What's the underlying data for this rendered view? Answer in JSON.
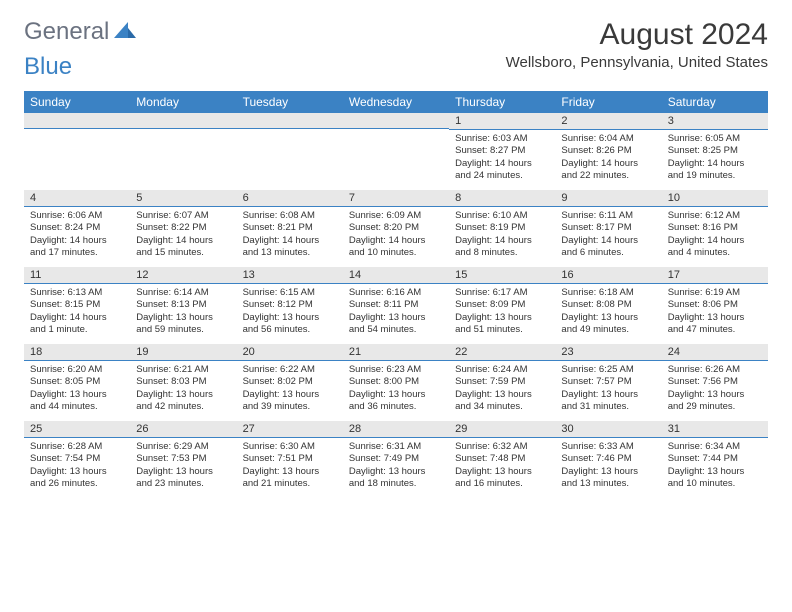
{
  "logo": {
    "text1": "General",
    "text2": "Blue"
  },
  "title": "August 2024",
  "location": "Wellsboro, Pennsylvania, United States",
  "colors": {
    "header_bg": "#3b82c4",
    "header_text": "#ffffff",
    "daynum_bg": "#e8e8e8",
    "daynum_border": "#3b82c4",
    "text": "#333333",
    "logo_gray": "#6b7280",
    "logo_blue": "#3b82c4"
  },
  "day_headers": [
    "Sunday",
    "Monday",
    "Tuesday",
    "Wednesday",
    "Thursday",
    "Friday",
    "Saturday"
  ],
  "weeks": [
    [
      {
        "num": "",
        "sunrise": "",
        "sunset": "",
        "daylight": ""
      },
      {
        "num": "",
        "sunrise": "",
        "sunset": "",
        "daylight": ""
      },
      {
        "num": "",
        "sunrise": "",
        "sunset": "",
        "daylight": ""
      },
      {
        "num": "",
        "sunrise": "",
        "sunset": "",
        "daylight": ""
      },
      {
        "num": "1",
        "sunrise": "Sunrise: 6:03 AM",
        "sunset": "Sunset: 8:27 PM",
        "daylight": "Daylight: 14 hours and 24 minutes."
      },
      {
        "num": "2",
        "sunrise": "Sunrise: 6:04 AM",
        "sunset": "Sunset: 8:26 PM",
        "daylight": "Daylight: 14 hours and 22 minutes."
      },
      {
        "num": "3",
        "sunrise": "Sunrise: 6:05 AM",
        "sunset": "Sunset: 8:25 PM",
        "daylight": "Daylight: 14 hours and 19 minutes."
      }
    ],
    [
      {
        "num": "4",
        "sunrise": "Sunrise: 6:06 AM",
        "sunset": "Sunset: 8:24 PM",
        "daylight": "Daylight: 14 hours and 17 minutes."
      },
      {
        "num": "5",
        "sunrise": "Sunrise: 6:07 AM",
        "sunset": "Sunset: 8:22 PM",
        "daylight": "Daylight: 14 hours and 15 minutes."
      },
      {
        "num": "6",
        "sunrise": "Sunrise: 6:08 AM",
        "sunset": "Sunset: 8:21 PM",
        "daylight": "Daylight: 14 hours and 13 minutes."
      },
      {
        "num": "7",
        "sunrise": "Sunrise: 6:09 AM",
        "sunset": "Sunset: 8:20 PM",
        "daylight": "Daylight: 14 hours and 10 minutes."
      },
      {
        "num": "8",
        "sunrise": "Sunrise: 6:10 AM",
        "sunset": "Sunset: 8:19 PM",
        "daylight": "Daylight: 14 hours and 8 minutes."
      },
      {
        "num": "9",
        "sunrise": "Sunrise: 6:11 AM",
        "sunset": "Sunset: 8:17 PM",
        "daylight": "Daylight: 14 hours and 6 minutes."
      },
      {
        "num": "10",
        "sunrise": "Sunrise: 6:12 AM",
        "sunset": "Sunset: 8:16 PM",
        "daylight": "Daylight: 14 hours and 4 minutes."
      }
    ],
    [
      {
        "num": "11",
        "sunrise": "Sunrise: 6:13 AM",
        "sunset": "Sunset: 8:15 PM",
        "daylight": "Daylight: 14 hours and 1 minute."
      },
      {
        "num": "12",
        "sunrise": "Sunrise: 6:14 AM",
        "sunset": "Sunset: 8:13 PM",
        "daylight": "Daylight: 13 hours and 59 minutes."
      },
      {
        "num": "13",
        "sunrise": "Sunrise: 6:15 AM",
        "sunset": "Sunset: 8:12 PM",
        "daylight": "Daylight: 13 hours and 56 minutes."
      },
      {
        "num": "14",
        "sunrise": "Sunrise: 6:16 AM",
        "sunset": "Sunset: 8:11 PM",
        "daylight": "Daylight: 13 hours and 54 minutes."
      },
      {
        "num": "15",
        "sunrise": "Sunrise: 6:17 AM",
        "sunset": "Sunset: 8:09 PM",
        "daylight": "Daylight: 13 hours and 51 minutes."
      },
      {
        "num": "16",
        "sunrise": "Sunrise: 6:18 AM",
        "sunset": "Sunset: 8:08 PM",
        "daylight": "Daylight: 13 hours and 49 minutes."
      },
      {
        "num": "17",
        "sunrise": "Sunrise: 6:19 AM",
        "sunset": "Sunset: 8:06 PM",
        "daylight": "Daylight: 13 hours and 47 minutes."
      }
    ],
    [
      {
        "num": "18",
        "sunrise": "Sunrise: 6:20 AM",
        "sunset": "Sunset: 8:05 PM",
        "daylight": "Daylight: 13 hours and 44 minutes."
      },
      {
        "num": "19",
        "sunrise": "Sunrise: 6:21 AM",
        "sunset": "Sunset: 8:03 PM",
        "daylight": "Daylight: 13 hours and 42 minutes."
      },
      {
        "num": "20",
        "sunrise": "Sunrise: 6:22 AM",
        "sunset": "Sunset: 8:02 PM",
        "daylight": "Daylight: 13 hours and 39 minutes."
      },
      {
        "num": "21",
        "sunrise": "Sunrise: 6:23 AM",
        "sunset": "Sunset: 8:00 PM",
        "daylight": "Daylight: 13 hours and 36 minutes."
      },
      {
        "num": "22",
        "sunrise": "Sunrise: 6:24 AM",
        "sunset": "Sunset: 7:59 PM",
        "daylight": "Daylight: 13 hours and 34 minutes."
      },
      {
        "num": "23",
        "sunrise": "Sunrise: 6:25 AM",
        "sunset": "Sunset: 7:57 PM",
        "daylight": "Daylight: 13 hours and 31 minutes."
      },
      {
        "num": "24",
        "sunrise": "Sunrise: 6:26 AM",
        "sunset": "Sunset: 7:56 PM",
        "daylight": "Daylight: 13 hours and 29 minutes."
      }
    ],
    [
      {
        "num": "25",
        "sunrise": "Sunrise: 6:28 AM",
        "sunset": "Sunset: 7:54 PM",
        "daylight": "Daylight: 13 hours and 26 minutes."
      },
      {
        "num": "26",
        "sunrise": "Sunrise: 6:29 AM",
        "sunset": "Sunset: 7:53 PM",
        "daylight": "Daylight: 13 hours and 23 minutes."
      },
      {
        "num": "27",
        "sunrise": "Sunrise: 6:30 AM",
        "sunset": "Sunset: 7:51 PM",
        "daylight": "Daylight: 13 hours and 21 minutes."
      },
      {
        "num": "28",
        "sunrise": "Sunrise: 6:31 AM",
        "sunset": "Sunset: 7:49 PM",
        "daylight": "Daylight: 13 hours and 18 minutes."
      },
      {
        "num": "29",
        "sunrise": "Sunrise: 6:32 AM",
        "sunset": "Sunset: 7:48 PM",
        "daylight": "Daylight: 13 hours and 16 minutes."
      },
      {
        "num": "30",
        "sunrise": "Sunrise: 6:33 AM",
        "sunset": "Sunset: 7:46 PM",
        "daylight": "Daylight: 13 hours and 13 minutes."
      },
      {
        "num": "31",
        "sunrise": "Sunrise: 6:34 AM",
        "sunset": "Sunset: 7:44 PM",
        "daylight": "Daylight: 13 hours and 10 minutes."
      }
    ]
  ]
}
